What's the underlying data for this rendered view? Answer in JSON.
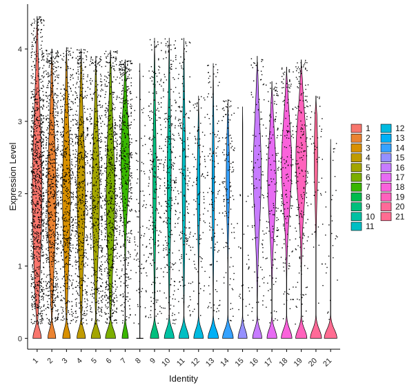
{
  "chart_data": {
    "type": "violin",
    "xlabel": "Identity",
    "ylabel": "Expression Level",
    "ylim": [
      -0.15,
      4.62
    ],
    "y_ticks": [
      0,
      1,
      2,
      3,
      4
    ],
    "grid": false,
    "legend_position": "right",
    "categories": [
      "1",
      "2",
      "3",
      "4",
      "5",
      "6",
      "7",
      "8",
      "9",
      "10",
      "11",
      "12",
      "13",
      "14",
      "15",
      "16",
      "17",
      "18",
      "19",
      "20",
      "21"
    ],
    "colors": [
      "#F8766D",
      "#EA8331",
      "#D89000",
      "#C09B00",
      "#A3A500",
      "#7CAE00",
      "#39B600",
      "#00BB4E",
      "#00BF7D",
      "#00C1A3",
      "#00BFC4",
      "#00BAE0",
      "#00B0F6",
      "#35A2FF",
      "#9590FF",
      "#C77CFF",
      "#E76BF3",
      "#FA62DB",
      "#FF62BC",
      "#FF6A98",
      "#FF6C91"
    ],
    "max_values": [
      4.45,
      4.0,
      4.02,
      4.0,
      3.9,
      3.98,
      3.85,
      3.8,
      4.15,
      4.15,
      4.15,
      3.35,
      3.8,
      3.3,
      3.2,
      3.9,
      3.55,
      3.75,
      3.85,
      3.35,
      2.75
    ],
    "zero_peak_width": [
      0.3,
      0.28,
      0.27,
      0.3,
      0.33,
      0.36,
      0.22,
      0.0,
      0.3,
      0.35,
      0.35,
      0.34,
      0.37,
      0.38,
      0.32,
      0.33,
      0.35,
      0.38,
      0.4,
      0.4,
      0.45
    ],
    "upper_mode": [
      2.0,
      2.0,
      2.0,
      2.0,
      2.0,
      2.0,
      2.5,
      0.0,
      2.2,
      2.2,
      2.2,
      2.1,
      2.1,
      2.2,
      0.0,
      2.3,
      2.2,
      2.4,
      2.5,
      2.5,
      0.0
    ],
    "upper_width": [
      0.34,
      0.3,
      0.28,
      0.28,
      0.26,
      0.3,
      0.3,
      0.0,
      0.12,
      0.14,
      0.12,
      0.1,
      0.08,
      0.12,
      0.0,
      0.28,
      0.3,
      0.36,
      0.38,
      0.12,
      0.0
    ],
    "point_counts": [
      900,
      700,
      500,
      550,
      450,
      600,
      450,
      100,
      230,
      260,
      180,
      110,
      130,
      130,
      30,
      110,
      140,
      170,
      200,
      50,
      30
    ],
    "legend": [
      "1",
      "2",
      "3",
      "4",
      "5",
      "6",
      "7",
      "8",
      "9",
      "10",
      "11",
      "12",
      "13",
      "14",
      "15",
      "16",
      "17",
      "18",
      "19",
      "20",
      "21"
    ]
  }
}
